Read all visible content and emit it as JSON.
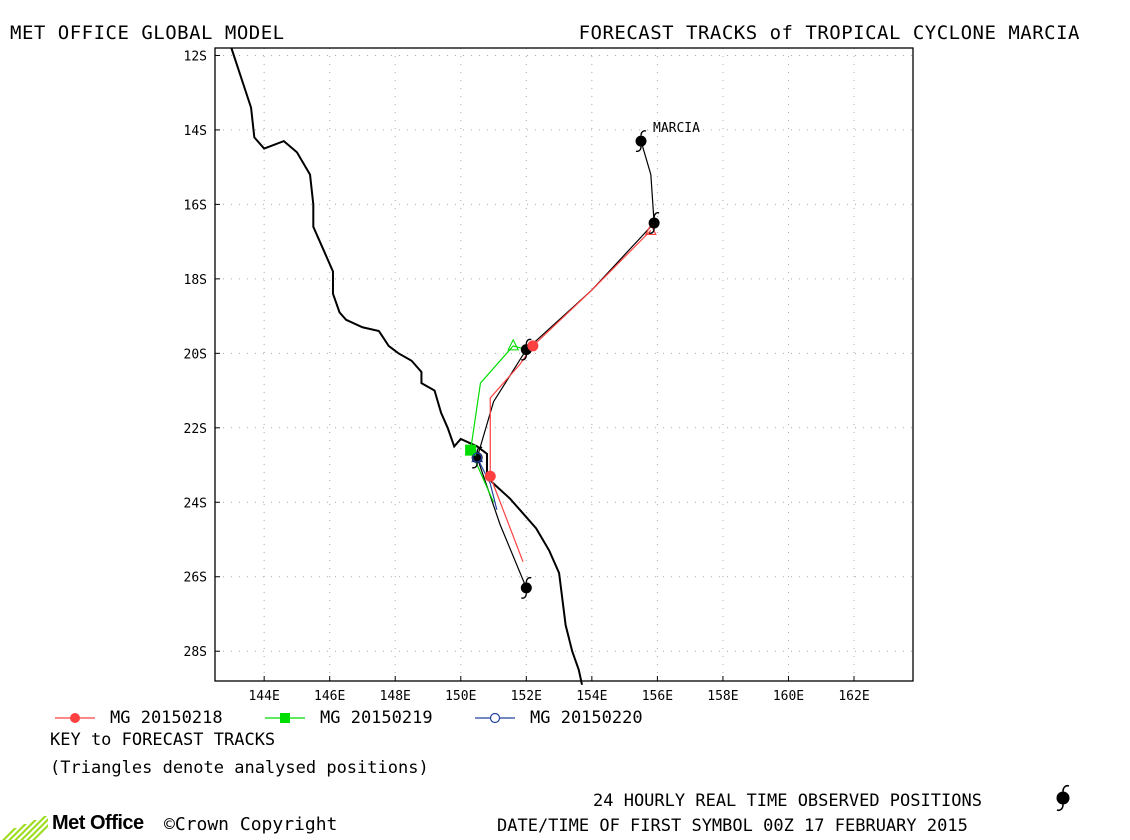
{
  "header": {
    "left_title": "MET OFFICE GLOBAL MODEL",
    "right_title": "FORECAST TRACKS of TROPICAL CYCLONE MARCIA"
  },
  "map": {
    "lat_labels": [
      "12S",
      "14S",
      "16S",
      "18S",
      "20S",
      "22S",
      "24S",
      "26S",
      "28S"
    ],
    "lon_labels": [
      "144E",
      "146E",
      "148E",
      "150E",
      "152E",
      "154E",
      "156E",
      "158E",
      "160E",
      "162E"
    ],
    "storm_label": "MARCIA",
    "coastline": [
      [
        143.0,
        11.8
      ],
      [
        143.3,
        12.6
      ],
      [
        143.6,
        13.4
      ],
      [
        143.7,
        14.2
      ],
      [
        144.0,
        14.5
      ],
      [
        144.6,
        14.3
      ],
      [
        145.0,
        14.6
      ],
      [
        145.4,
        15.2
      ],
      [
        145.5,
        16.0
      ],
      [
        145.5,
        16.6
      ],
      [
        145.8,
        17.2
      ],
      [
        146.1,
        17.8
      ],
      [
        146.1,
        18.4
      ],
      [
        146.3,
        18.9
      ],
      [
        146.5,
        19.1
      ],
      [
        147.0,
        19.3
      ],
      [
        147.5,
        19.4
      ],
      [
        147.8,
        19.8
      ],
      [
        148.1,
        20.0
      ],
      [
        148.5,
        20.2
      ],
      [
        148.8,
        20.5
      ],
      [
        148.8,
        20.8
      ],
      [
        149.2,
        21.0
      ],
      [
        149.4,
        21.6
      ],
      [
        149.6,
        22.0
      ],
      [
        149.8,
        22.5
      ],
      [
        150.0,
        22.3
      ],
      [
        150.5,
        22.5
      ],
      [
        150.8,
        22.7
      ],
      [
        150.8,
        23.3
      ],
      [
        151.0,
        23.5
      ],
      [
        151.5,
        23.9
      ],
      [
        151.8,
        24.2
      ],
      [
        152.3,
        24.7
      ],
      [
        152.7,
        25.3
      ],
      [
        153.0,
        25.9
      ],
      [
        153.1,
        26.6
      ],
      [
        153.2,
        27.3
      ],
      [
        153.4,
        28.0
      ],
      [
        153.6,
        28.5
      ],
      [
        153.7,
        28.9
      ]
    ],
    "observed_positions": [
      [
        155.5,
        14.3
      ],
      [
        155.9,
        16.5
      ],
      [
        152.0,
        19.9
      ],
      [
        150.5,
        22.8
      ],
      [
        152.0,
        26.3
      ]
    ],
    "observed_track": [
      [
        155.4,
        14.2
      ],
      [
        155.5,
        14.3
      ],
      [
        155.8,
        15.2
      ],
      [
        155.9,
        16.5
      ],
      [
        154.0,
        18.3
      ],
      [
        152.0,
        19.9
      ],
      [
        151.0,
        21.3
      ],
      [
        150.5,
        22.8
      ],
      [
        151.2,
        24.6
      ],
      [
        152.0,
        26.3
      ]
    ]
  },
  "chart_data": {
    "type": "scatter",
    "title": "FORECAST TRACKS of TROPICAL CYCLONE MARCIA",
    "xlim": [
      142.5,
      163.8
    ],
    "ylim": [
      -28.8,
      -11.8
    ],
    "x_units": "degrees E",
    "y_units": "degrees (negative = S)",
    "grid": true,
    "series": [
      {
        "name": "MG 20150218",
        "color": "#ff4040",
        "marker": "filled-circle",
        "track": [
          [
            155.8,
            -16.7
          ],
          [
            154.0,
            -18.3
          ],
          [
            152.2,
            -19.8
          ],
          [
            151.8,
            -20.3
          ],
          [
            150.9,
            -21.2
          ],
          [
            150.9,
            -23.3
          ],
          [
            151.9,
            -25.6
          ]
        ],
        "analysed_positions": [
          [
            155.8,
            -16.7
          ]
        ],
        "forecast_markers": [
          [
            152.2,
            -19.8
          ],
          [
            150.9,
            -23.3
          ]
        ]
      },
      {
        "name": "MG 20150219",
        "color": "#00dd00",
        "marker": "filled-square",
        "track": [
          [
            152.0,
            -19.9
          ],
          [
            151.6,
            -19.8
          ],
          [
            150.6,
            -20.8
          ],
          [
            150.3,
            -22.6
          ],
          [
            151.0,
            -24.0
          ]
        ],
        "analysed_positions": [
          [
            151.6,
            -19.8
          ]
        ],
        "forecast_markers": [
          [
            150.3,
            -22.6
          ]
        ]
      },
      {
        "name": "MG 20150220",
        "color": "#2040a0",
        "marker": "open-circle",
        "track": [
          [
            150.5,
            -22.8
          ],
          [
            150.9,
            -23.5
          ],
          [
            151.1,
            -24.2
          ]
        ],
        "analysed_positions": [
          [
            150.5,
            -22.8
          ]
        ],
        "forecast_markers": [
          [
            150.5,
            -22.8
          ]
        ]
      }
    ]
  },
  "legend": {
    "items": [
      {
        "label": "MG 20150218",
        "color": "#ff4040",
        "marker": "filled-circle"
      },
      {
        "label": "MG 20150219",
        "color": "#00dd00",
        "marker": "filled-square"
      },
      {
        "label": "MG 20150220",
        "color": "#2040a0",
        "marker": "open-circle"
      }
    ],
    "key_title": "KEY to FORECAST TRACKS",
    "key_note": "(Triangles denote analysed positions)"
  },
  "footer": {
    "observed_text": "24 HOURLY REAL TIME OBSERVED POSITIONS",
    "datetime_text": "DATE/TIME OF FIRST SYMBOL 00Z 17 FEBRUARY 2015",
    "logo_text": "Met Office",
    "copyright_text": "©Crown Copyright"
  }
}
